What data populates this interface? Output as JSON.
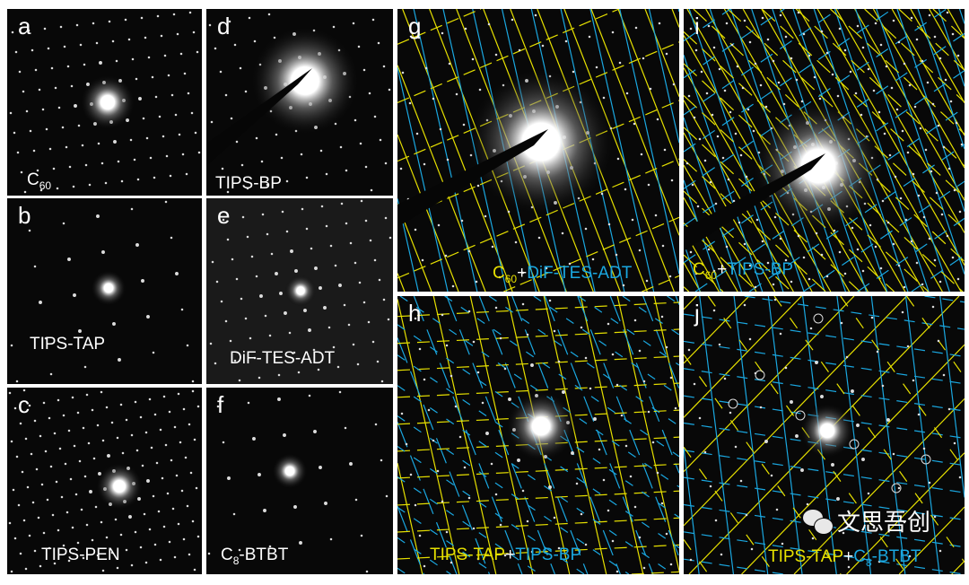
{
  "colors": {
    "yellow": "#e6e000",
    "blue": "#1aa7e0",
    "background": "#080808",
    "text": "#ffffff"
  },
  "panels": {
    "a": {
      "letter": "a",
      "label_main": "C",
      "label_sub": "60",
      "label_rest": ""
    },
    "b": {
      "letter": "b",
      "label": "TIPS-TAP"
    },
    "c": {
      "letter": "c",
      "label": "TIPS-PEN"
    },
    "d": {
      "letter": "d",
      "label": "TIPS-BP"
    },
    "e": {
      "letter": "e",
      "label": "DiF-TES-ADT"
    },
    "f": {
      "letter": "f",
      "label_main": "C",
      "label_sub": "8",
      "label_rest": "-BTBT"
    },
    "g": {
      "letter": "g",
      "first_main": "C",
      "first_sub": "60",
      "plus": "+",
      "second": "DiF-TES-ADT"
    },
    "i": {
      "letter": "i",
      "first_main": "C",
      "first_sub": "60",
      "plus": "+",
      "second": "TIPS-BP"
    },
    "h": {
      "letter": "h",
      "first": "TIPS-TAP",
      "plus": "+",
      "second": "TIPS-BP"
    },
    "j": {
      "letter": "j",
      "first": "TIPS-TAP",
      "plus": "+",
      "second_main": "C",
      "second_sub": "8",
      "second_rest": "-BTBT"
    }
  },
  "watermark": {
    "icon": "wechat-icon",
    "text": "文思吾创"
  }
}
